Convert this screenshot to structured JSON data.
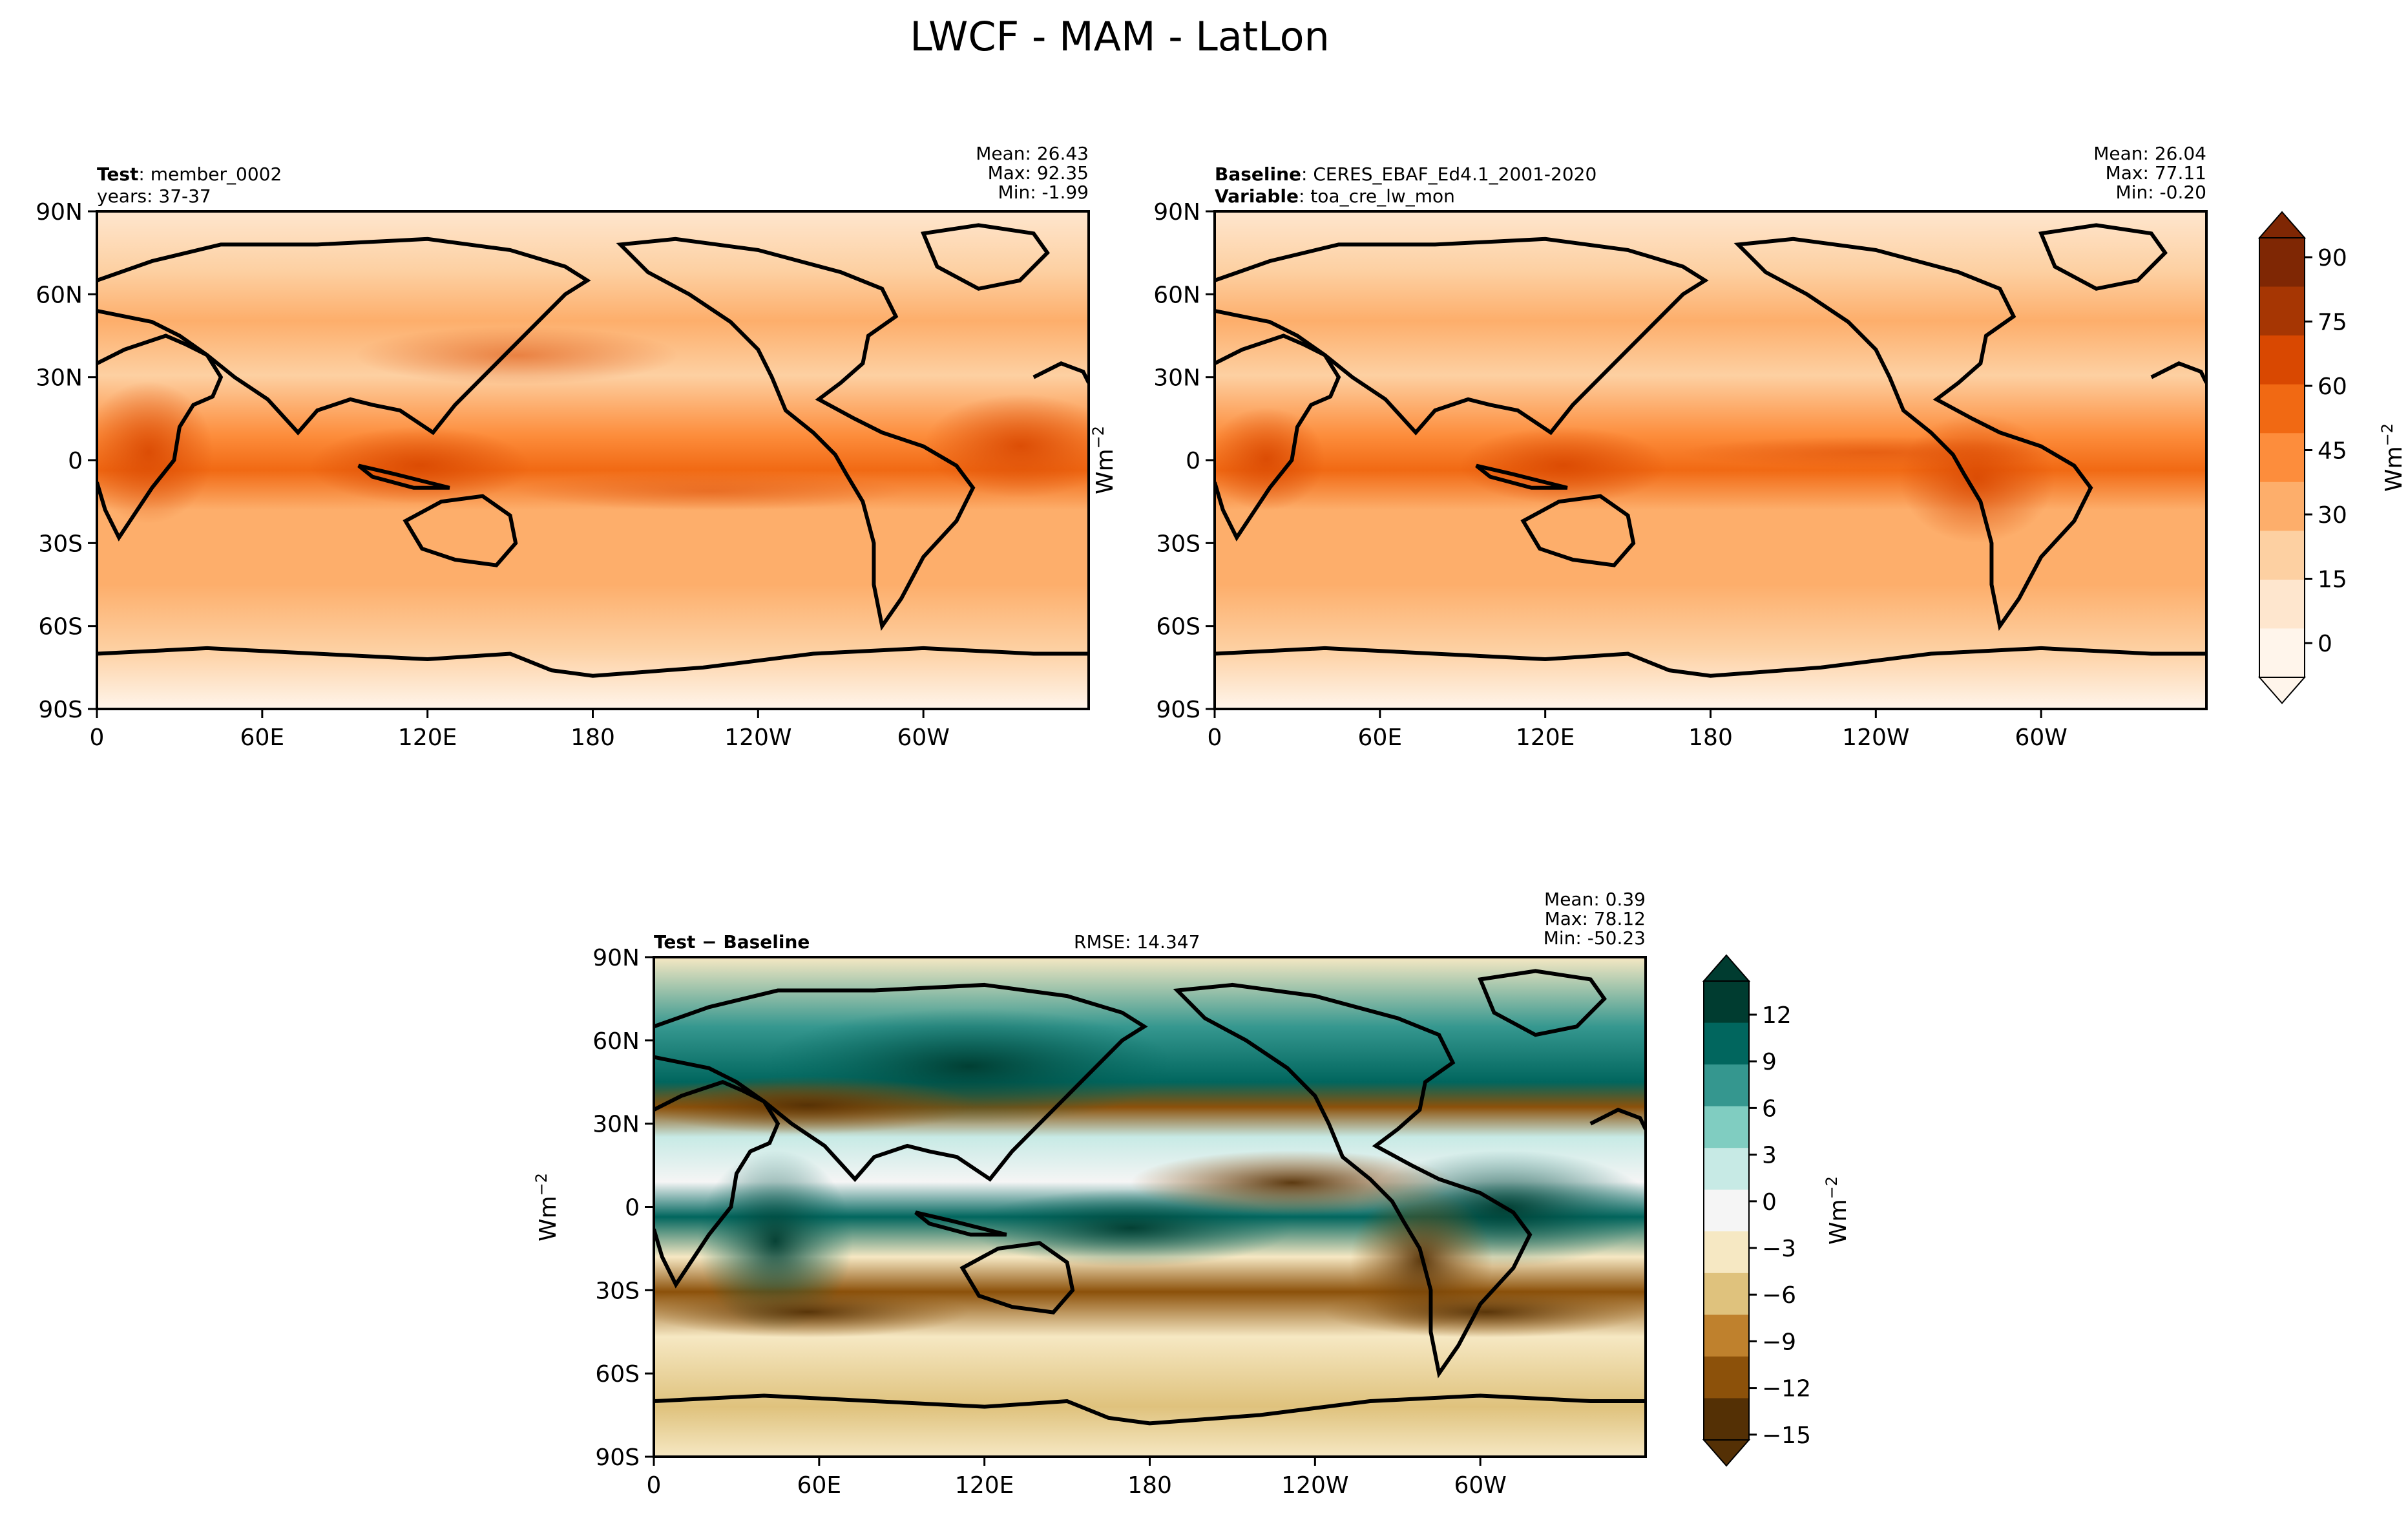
{
  "figure": {
    "title": "LWCF - MAM - LatLon"
  },
  "chart_data": [
    {
      "type": "heatmap",
      "name": "test",
      "label_bold": "Test",
      "label_rest": ": member_0002",
      "label_line2": "years: 37-37",
      "stats": [
        "Mean: 26.43",
        "Max: 92.35",
        "Min: -1.99"
      ],
      "xticks": [
        "0",
        "60E",
        "120E",
        "180",
        "120W",
        "60W"
      ],
      "yticks": [
        "90N",
        "60N",
        "30N",
        "0",
        "30S",
        "60S",
        "90S"
      ],
      "colormap": "oranges",
      "units": "Wm-2"
    },
    {
      "type": "heatmap",
      "name": "baseline",
      "label_bold": "Baseline",
      "label_rest": ": CERES_EBAF_Ed4.1_2001-2020",
      "label_bold2": "Variable",
      "label_rest2": ": toa_cre_lw_mon",
      "stats": [
        "Mean: 26.04",
        "Max: 77.11",
        "Min: -0.20"
      ],
      "xticks": [
        "0",
        "60E",
        "120E",
        "180",
        "120W",
        "60W"
      ],
      "yticks": [
        "90N",
        "60N",
        "30N",
        "0",
        "30S",
        "60S",
        "90S"
      ],
      "colormap": "oranges",
      "units": "Wm-2",
      "colorbar": {
        "ticks": [
          "90",
          "75",
          "60",
          "45",
          "30",
          "15",
          "0"
        ],
        "label": "Wm",
        "label_exp": "−2",
        "colors": [
          "#fff5eb",
          "#fee6ce",
          "#fdd0a2",
          "#fdae6b",
          "#fd8d3c",
          "#f16913",
          "#d94801",
          "#a63603",
          "#7f2704"
        ]
      }
    },
    {
      "type": "heatmap",
      "name": "difference",
      "label_bold": "Test − Baseline",
      "rmse": "RMSE: 14.347",
      "stats": [
        "Mean:  0.39",
        "Max: 78.12",
        "Min: -50.23"
      ],
      "xticks": [
        "0",
        "60E",
        "120E",
        "180",
        "120W",
        "60W"
      ],
      "yticks": [
        "90N",
        "60N",
        "30N",
        "0",
        "30S",
        "60S",
        "90S"
      ],
      "colormap": "BrBG",
      "units": "Wm-2",
      "colorbar": {
        "ticks": [
          "12",
          "9",
          "6",
          "3",
          "0",
          "−3",
          "−6",
          "−9",
          "−12",
          "−15"
        ],
        "label": "Wm",
        "label_exp": "−2",
        "colors": [
          "#543005",
          "#8c510a",
          "#bf812d",
          "#dfc27d",
          "#f6e8c3",
          "#f5f5f5",
          "#c7eae5",
          "#80cdc1",
          "#35978f",
          "#01665e",
          "#003c30"
        ]
      }
    }
  ]
}
